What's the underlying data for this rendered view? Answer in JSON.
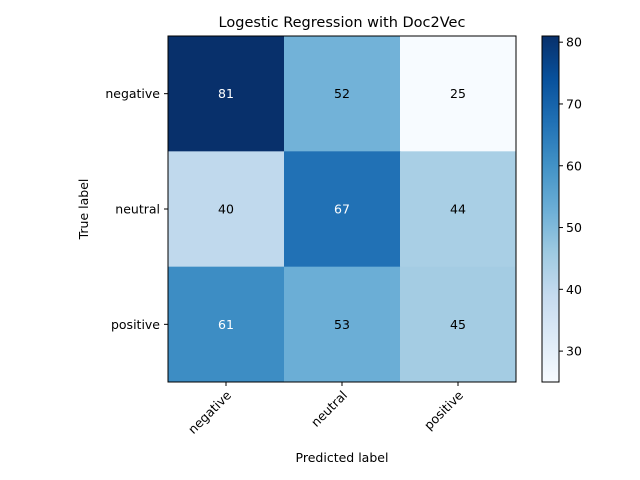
{
  "chart_data": {
    "type": "heatmap",
    "title": "Logestic Regression with Doc2Vec",
    "xlabel": "Predicted label",
    "ylabel": "True label",
    "x_categories": [
      "negative",
      "neutral",
      "positive"
    ],
    "y_categories": [
      "negative",
      "neutral",
      "positive"
    ],
    "values": [
      [
        81,
        52,
        25
      ],
      [
        40,
        67,
        44
      ],
      [
        61,
        53,
        45
      ]
    ],
    "colorbar": {
      "min": 25,
      "max": 81,
      "ticks": [
        30,
        40,
        50,
        60,
        70,
        80
      ],
      "colormap": "Blues"
    },
    "text_threshold": 53,
    "light_text_color": "#ffffff",
    "dark_text_color": "#000000"
  }
}
